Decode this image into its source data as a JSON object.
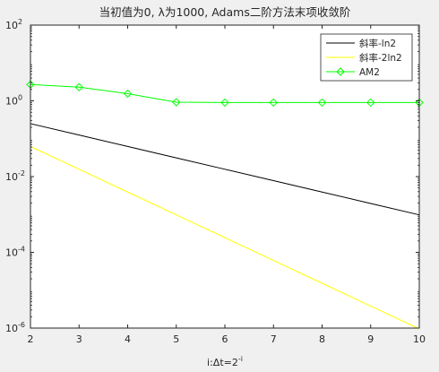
{
  "chart_data": {
    "type": "line",
    "title": "当初值为0, λ为1000, Adams二阶方法末项收敛阶",
    "xlabel": "i:Δt=2",
    "xlabel_sup": "-i",
    "ylabel": "",
    "yscale": "log",
    "xlim": [
      2,
      10
    ],
    "ylim": [
      1e-06,
      100
    ],
    "xticks": [
      "2",
      "3",
      "4",
      "5",
      "6",
      "7",
      "8",
      "9",
      "10"
    ],
    "yticks": [
      {
        "base": "10",
        "exp": "-6"
      },
      {
        "base": "10",
        "exp": "-4"
      },
      {
        "base": "10",
        "exp": "-2"
      },
      {
        "base": "10",
        "exp": "0"
      },
      {
        "base": "10",
        "exp": "2"
      }
    ],
    "grid": false,
    "legend_position": "top-right",
    "series": [
      {
        "name": "斜率-ln2",
        "color": "#000000",
        "marker": "none",
        "x": [
          2,
          3,
          4,
          5,
          6,
          7,
          8,
          9,
          10
        ],
        "y": [
          0.25,
          0.125,
          0.0625,
          0.03125,
          0.015625,
          0.0078125,
          0.00390625,
          0.001953125,
          0.0009765625
        ]
      },
      {
        "name": "斜率-2ln2",
        "color": "#ffff00",
        "marker": "none",
        "x": [
          2,
          3,
          4,
          5,
          6,
          7,
          8,
          9,
          10
        ],
        "y": [
          0.0625,
          0.015625,
          0.00390625,
          0.0009765625,
          0.000244140625,
          6.103515625e-05,
          1.52587890625e-05,
          3.814697265625e-06,
          9.5367431640625e-07
        ]
      },
      {
        "name": "AM2",
        "color": "#00ff00",
        "marker": "diamond",
        "x": [
          2,
          3,
          4,
          5,
          6,
          7,
          8,
          9,
          10
        ],
        "y": [
          2.7,
          2.3,
          1.55,
          0.92,
          0.9,
          0.9,
          0.9,
          0.9,
          0.9
        ]
      }
    ]
  }
}
